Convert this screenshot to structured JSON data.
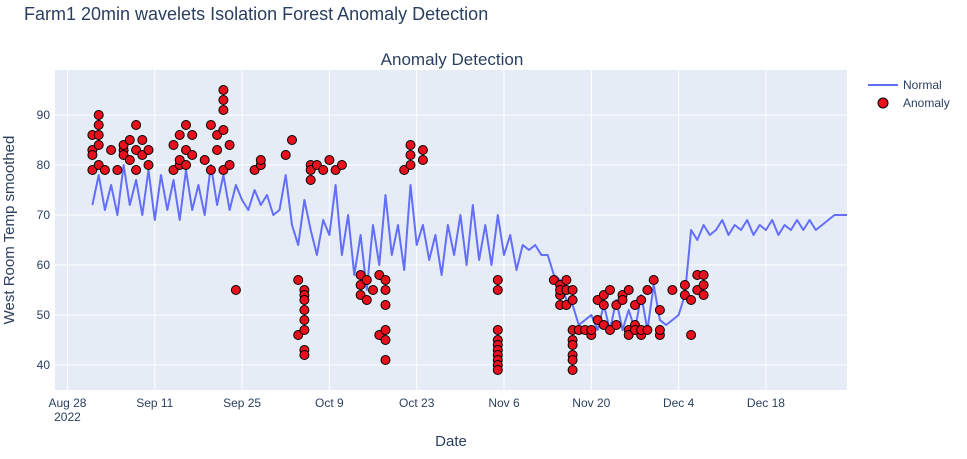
{
  "page_title": "Farm1 20min wavelets Isolation Forest Anomaly Detection",
  "chart_data": {
    "type": "line",
    "title": "Anomaly Detection",
    "xlabel": "Date",
    "ylabel": "West Room Temp smoothed",
    "xlim": [
      "2022-08-26",
      "2022-12-31"
    ],
    "ylim": [
      35,
      99
    ],
    "y_ticks": [
      40,
      50,
      60,
      70,
      80,
      90
    ],
    "x_ticks": [
      {
        "date": "2022-08-28",
        "label": "Aug 28",
        "sublabel": "2022"
      },
      {
        "date": "2022-09-11",
        "label": "Sep 11"
      },
      {
        "date": "2022-09-25",
        "label": "Sep 25"
      },
      {
        "date": "2022-10-09",
        "label": "Oct 9"
      },
      {
        "date": "2022-10-23",
        "label": "Oct 23"
      },
      {
        "date": "2022-11-06",
        "label": "Nov 6"
      },
      {
        "date": "2022-11-20",
        "label": "Nov 20"
      },
      {
        "date": "2022-12-04",
        "label": "Dec 4"
      },
      {
        "date": "2022-12-18",
        "label": "Dec 18"
      }
    ],
    "grid": true,
    "legend_position": "top-right",
    "colors": {
      "normal": "#636efa",
      "anomaly": "#e8101c",
      "anomaly_edge": "#000000",
      "plot_bg": "#e5ecf6",
      "grid": "#ffffff",
      "text": "#2a3f5f"
    },
    "series": [
      {
        "name": "Normal",
        "mode": "line",
        "x": [
          "2022-09-01",
          "2022-09-02",
          "2022-09-03",
          "2022-09-04",
          "2022-09-05",
          "2022-09-06",
          "2022-09-07",
          "2022-09-08",
          "2022-09-09",
          "2022-09-10",
          "2022-09-11",
          "2022-09-12",
          "2022-09-13",
          "2022-09-14",
          "2022-09-15",
          "2022-09-16",
          "2022-09-17",
          "2022-09-18",
          "2022-09-19",
          "2022-09-20",
          "2022-09-21",
          "2022-09-22",
          "2022-09-23",
          "2022-09-24",
          "2022-09-25",
          "2022-09-26",
          "2022-09-27",
          "2022-09-28",
          "2022-09-29",
          "2022-09-30",
          "2022-10-01",
          "2022-10-02",
          "2022-10-03",
          "2022-10-04",
          "2022-10-05",
          "2022-10-06",
          "2022-10-07",
          "2022-10-08",
          "2022-10-09",
          "2022-10-10",
          "2022-10-11",
          "2022-10-12",
          "2022-10-13",
          "2022-10-14",
          "2022-10-15",
          "2022-10-16",
          "2022-10-17",
          "2022-10-18",
          "2022-10-19",
          "2022-10-20",
          "2022-10-21",
          "2022-10-22",
          "2022-10-23",
          "2022-10-24",
          "2022-10-25",
          "2022-10-26",
          "2022-10-27",
          "2022-10-28",
          "2022-10-29",
          "2022-10-30",
          "2022-10-31",
          "2022-11-01",
          "2022-11-02",
          "2022-11-03",
          "2022-11-04",
          "2022-11-05",
          "2022-11-06",
          "2022-11-07",
          "2022-11-08",
          "2022-11-09",
          "2022-11-10",
          "2022-11-11",
          "2022-11-12",
          "2022-11-13",
          "2022-11-14",
          "2022-11-15",
          "2022-11-16",
          "2022-11-17",
          "2022-11-18",
          "2022-11-19",
          "2022-11-20",
          "2022-11-21",
          "2022-11-22",
          "2022-11-23",
          "2022-11-24",
          "2022-11-25",
          "2022-11-26",
          "2022-11-27",
          "2022-11-28",
          "2022-11-29",
          "2022-11-30",
          "2022-12-01",
          "2022-12-02",
          "2022-12-03",
          "2022-12-04",
          "2022-12-05",
          "2022-12-06",
          "2022-12-07",
          "2022-12-08",
          "2022-12-09",
          "2022-12-10",
          "2022-12-11",
          "2022-12-12",
          "2022-12-13",
          "2022-12-14",
          "2022-12-15",
          "2022-12-16",
          "2022-12-17",
          "2022-12-18",
          "2022-12-19",
          "2022-12-20",
          "2022-12-21",
          "2022-12-22",
          "2022-12-23",
          "2022-12-24",
          "2022-12-25",
          "2022-12-26",
          "2022-12-27",
          "2022-12-28",
          "2022-12-29",
          "2022-12-30",
          "2022-12-31"
        ],
        "y": [
          72,
          78,
          71,
          76,
          70,
          80,
          72,
          77,
          70,
          79,
          69,
          78,
          71,
          77,
          69,
          79,
          71,
          76,
          70,
          80,
          72,
          78,
          71,
          76,
          73,
          71,
          75,
          72,
          74,
          70,
          71,
          78,
          68,
          64,
          73,
          67,
          62,
          69,
          66,
          76,
          62,
          70,
          58,
          66,
          55,
          68,
          60,
          74,
          62,
          68,
          59,
          76,
          64,
          68,
          61,
          66,
          58,
          68,
          62,
          70,
          60,
          72,
          61,
          68,
          60,
          70,
          62,
          66,
          59,
          64,
          63,
          64,
          62,
          62,
          58,
          57,
          53,
          52,
          48,
          49,
          50,
          47,
          52,
          47,
          53,
          47,
          51,
          47,
          54,
          47,
          56,
          49,
          48,
          49,
          50,
          54,
          67,
          65,
          68,
          66,
          67,
          69,
          66,
          68,
          67,
          69,
          66,
          68,
          67,
          69,
          66,
          68,
          67,
          69,
          67,
          69,
          67,
          68,
          69,
          70,
          70,
          70
        ]
      },
      {
        "name": "Anomaly",
        "mode": "markers",
        "x": [
          "2022-09-01",
          "2022-09-01",
          "2022-09-01",
          "2022-09-01",
          "2022-09-02",
          "2022-09-02",
          "2022-09-02",
          "2022-09-02",
          "2022-09-02",
          "2022-09-03",
          "2022-09-04",
          "2022-09-05",
          "2022-09-06",
          "2022-09-06",
          "2022-09-06",
          "2022-09-07",
          "2022-09-07",
          "2022-09-08",
          "2022-09-08",
          "2022-09-08",
          "2022-09-09",
          "2022-09-09",
          "2022-09-10",
          "2022-09-10",
          "2022-09-14",
          "2022-09-14",
          "2022-09-15",
          "2022-09-15",
          "2022-09-15",
          "2022-09-16",
          "2022-09-16",
          "2022-09-16",
          "2022-09-17",
          "2022-09-17",
          "2022-09-19",
          "2022-09-20",
          "2022-09-20",
          "2022-09-21",
          "2022-09-21",
          "2022-09-22",
          "2022-09-22",
          "2022-09-22",
          "2022-09-22",
          "2022-09-22",
          "2022-09-23",
          "2022-09-23",
          "2022-09-24",
          "2022-09-27",
          "2022-09-28",
          "2022-09-28",
          "2022-10-02",
          "2022-10-03",
          "2022-10-04",
          "2022-10-04",
          "2022-10-05",
          "2022-10-05",
          "2022-10-05",
          "2022-10-05",
          "2022-10-05",
          "2022-10-05",
          "2022-10-05",
          "2022-10-05",
          "2022-10-06",
          "2022-10-06",
          "2022-10-06",
          "2022-10-07",
          "2022-10-08",
          "2022-10-09",
          "2022-10-10",
          "2022-10-11",
          "2022-10-14",
          "2022-10-14",
          "2022-10-14",
          "2022-10-15",
          "2022-10-15",
          "2022-10-16",
          "2022-10-17",
          "2022-10-17",
          "2022-10-18",
          "2022-10-18",
          "2022-10-18",
          "2022-10-18",
          "2022-10-18",
          "2022-10-18",
          "2022-10-21",
          "2022-10-22",
          "2022-10-22",
          "2022-10-22",
          "2022-10-24",
          "2022-10-24",
          "2022-11-05",
          "2022-11-05",
          "2022-11-05",
          "2022-11-05",
          "2022-11-05",
          "2022-11-05",
          "2022-11-05",
          "2022-11-05",
          "2022-11-05",
          "2022-11-05",
          "2022-11-14",
          "2022-11-15",
          "2022-11-15",
          "2022-11-15",
          "2022-11-15",
          "2022-11-16",
          "2022-11-16",
          "2022-11-16",
          "2022-11-17",
          "2022-11-17",
          "2022-11-17",
          "2022-11-17",
          "2022-11-17",
          "2022-11-17",
          "2022-11-17",
          "2022-11-17",
          "2022-11-18",
          "2022-11-19",
          "2022-11-20",
          "2022-11-20",
          "2022-11-21",
          "2022-11-21",
          "2022-11-22",
          "2022-11-22",
          "2022-11-22",
          "2022-11-23",
          "2022-11-23",
          "2022-11-24",
          "2022-11-24",
          "2022-11-25",
          "2022-11-25",
          "2022-11-26",
          "2022-11-26",
          "2022-11-26",
          "2022-11-27",
          "2022-11-27",
          "2022-11-27",
          "2022-11-28",
          "2022-11-28",
          "2022-11-28",
          "2022-11-29",
          "2022-11-29",
          "2022-11-30",
          "2022-12-01",
          "2022-12-01",
          "2022-12-01",
          "2022-12-03",
          "2022-12-05",
          "2022-12-05",
          "2022-12-06",
          "2022-12-06",
          "2022-12-07",
          "2022-12-07",
          "2022-12-08",
          "2022-12-08",
          "2022-12-08"
        ],
        "y": [
          79,
          83,
          86,
          82,
          90,
          88,
          84,
          80,
          86,
          79,
          83,
          79,
          83,
          82,
          84,
          85,
          81,
          83,
          88,
          79,
          85,
          82,
          80,
          83,
          79,
          84,
          80,
          86,
          81,
          83,
          88,
          80,
          82,
          86,
          81,
          79,
          88,
          83,
          86,
          79,
          87,
          91,
          93,
          95,
          84,
          80,
          55,
          79,
          80,
          81,
          82,
          85,
          57,
          46,
          55,
          54,
          53,
          51,
          49,
          47,
          43,
          42,
          80,
          77,
          79,
          80,
          79,
          81,
          79,
          80,
          56,
          58,
          54,
          53,
          57,
          55,
          46,
          58,
          57,
          55,
          52,
          47,
          45,
          41,
          79,
          84,
          82,
          80,
          83,
          81,
          57,
          55,
          47,
          45,
          44,
          43,
          42,
          41,
          40,
          39,
          57,
          56,
          54,
          52,
          55,
          57,
          55,
          52,
          53,
          55,
          47,
          45,
          44,
          42,
          41,
          39,
          47,
          47,
          46,
          47,
          53,
          49,
          54,
          52,
          48,
          55,
          47,
          52,
          48,
          54,
          53,
          47,
          46,
          55,
          52,
          48,
          47,
          46,
          53,
          47,
          55,
          47,
          57,
          46,
          51,
          47,
          55,
          54,
          56,
          53,
          46,
          58,
          55,
          58,
          56,
          54
        ]
      }
    ]
  }
}
